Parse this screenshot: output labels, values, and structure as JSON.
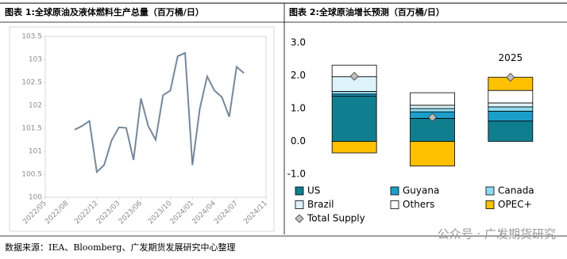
{
  "chart_data": [
    {
      "type": "line",
      "title": "图表 1:全球原油及液体燃料生产总量（百万桶/日）",
      "x": [
        "2022/09",
        "2022/10",
        "2022/11",
        "2022/12",
        "2023/01",
        "2023/02",
        "2023/03",
        "2023/04",
        "2023/05",
        "2023/06",
        "2023/07",
        "2023/08",
        "2023/09",
        "2023/10",
        "2023/11",
        "2023/12",
        "2024/01",
        "2024/02",
        "2024/03",
        "2024/04",
        "2024/05",
        "2024/06",
        "2024/07",
        "2024/08"
      ],
      "values": [
        101.47,
        101.55,
        101.66,
        100.55,
        100.7,
        101.23,
        101.52,
        101.51,
        100.81,
        102.15,
        101.55,
        101.25,
        102.22,
        102.32,
        103.07,
        103.14,
        100.7,
        101.93,
        102.63,
        102.32,
        102.18,
        101.75,
        102.84,
        102.7
      ],
      "color": "#76889a",
      "xlim": [
        "2022/05",
        "2024/11"
      ],
      "xticks": [
        "2022/05",
        "2022/08",
        "2022/12",
        "2023/03",
        "2023/06",
        "2023/10",
        "2024/01",
        "2024/04",
        "2024/07",
        "2024/11"
      ],
      "ylim": [
        100,
        103.5
      ],
      "yticks": [
        100,
        100.5,
        101,
        101.5,
        102,
        102.5,
        103,
        103.5
      ]
    },
    {
      "type": "bar",
      "stacked": true,
      "title": "图表 2:全球原油增长预测（百万桶/日）",
      "categories": [
        null,
        null,
        "2025"
      ],
      "series": [
        {
          "name": "US",
          "color": "#0f7f8f",
          "values": [
            1.38,
            0.7,
            0.62
          ]
        },
        {
          "name": "Guyana",
          "color": "#1b9fc9",
          "values": [
            0.06,
            0.2,
            0.3
          ]
        },
        {
          "name": "Canada",
          "color": "#8fdcf2",
          "values": [
            0.08,
            0.1,
            0.13
          ]
        },
        {
          "name": "Brazil",
          "color": "#ddf3fb",
          "values": [
            0.45,
            0.1,
            0.12
          ]
        },
        {
          "name": "Others",
          "color": "#ffffff",
          "values": [
            0.35,
            0.38,
            0.38
          ]
        },
        {
          "name": "OPEC+",
          "color": "#ffc000",
          "values": [
            -0.35,
            -0.75,
            0.4
          ]
        },
        {
          "name": "Total Supply",
          "type": "scatter",
          "color": "#bfbfbf",
          "values": [
            1.98,
            0.73,
            1.95
          ]
        }
      ],
      "ylim": [
        -1,
        3
      ],
      "yticks": [
        {
          "value": -1,
          "label": "-1.0"
        },
        {
          "value": 0,
          "label": "0.0"
        },
        {
          "value": 1,
          "label": "1.0"
        },
        {
          "value": 2,
          "label": "2.0"
        },
        {
          "value": 3,
          "label": "3.0"
        }
      ],
      "legend": "bottom"
    }
  ],
  "footer": {
    "source": "数据来源：IEA、Bloomberg、广发期货发展研究中心整理",
    "watermark": "公众号 · 广发期货研究"
  }
}
